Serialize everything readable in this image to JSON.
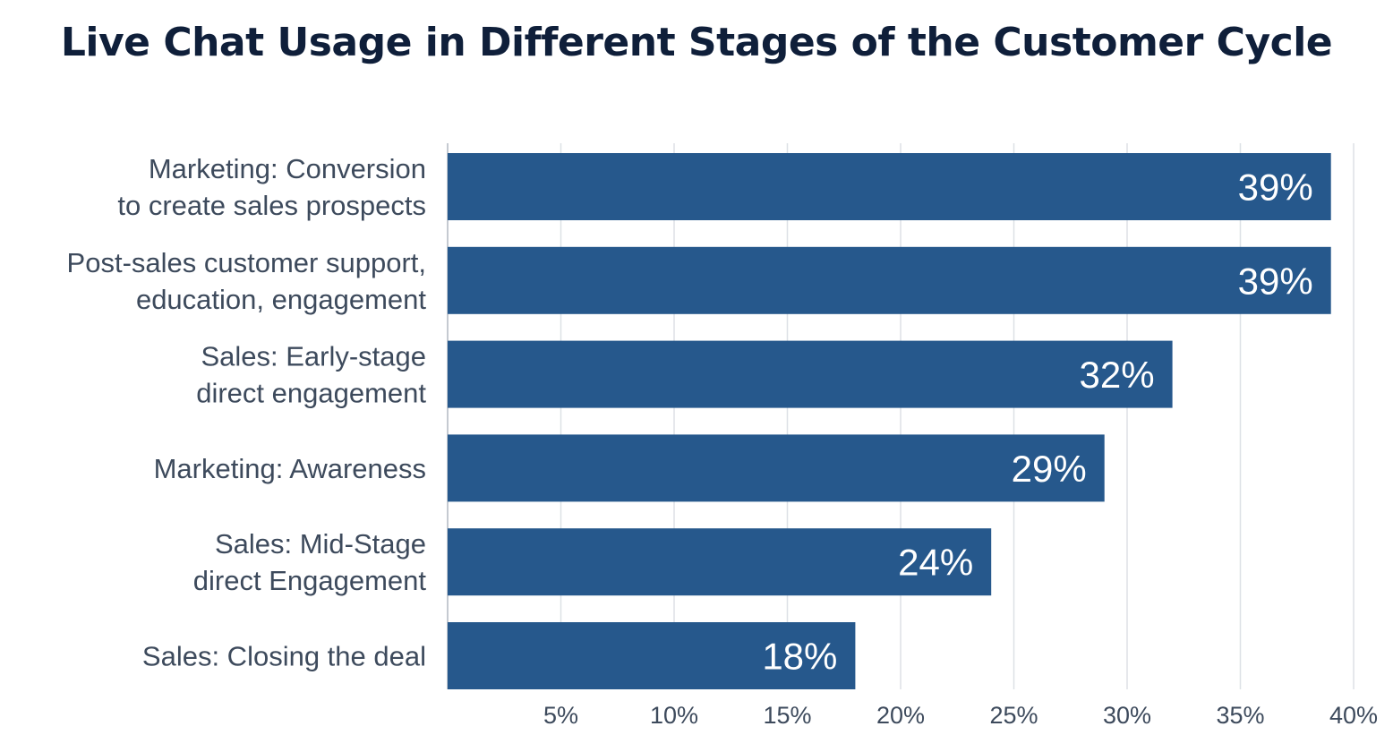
{
  "chart_data": {
    "type": "bar",
    "orientation": "horizontal",
    "title": "Live Chat Usage in Different Stages of the Customer Cycle",
    "categories": [
      [
        "Marketing: Conversion",
        "to create sales prospects"
      ],
      [
        "Post-sales customer support,",
        "education, engagement"
      ],
      [
        "Sales: Early-stage",
        "direct engagement"
      ],
      [
        "Marketing: Awareness"
      ],
      [
        "Sales: Mid-Stage",
        "direct Engagement"
      ],
      [
        "Sales: Closing the deal"
      ]
    ],
    "values": [
      39,
      39,
      32,
      29,
      24,
      18
    ],
    "value_labels": [
      "39%",
      "39%",
      "32%",
      "29%",
      "24%",
      "18%"
    ],
    "xlim": [
      0,
      40
    ],
    "x_ticks": [
      5,
      10,
      15,
      20,
      25,
      30,
      35,
      40
    ],
    "x_tick_labels": [
      "5%",
      "10%",
      "15%",
      "20%",
      "25%",
      "30%",
      "35%",
      "40%"
    ],
    "grid": true,
    "colors": {
      "bar": "#26588c",
      "grid": "#dde1e6",
      "axis": "#c5cad1",
      "title": "#0f1f3a",
      "label": "#3d4a5c",
      "value_text": "#ffffff"
    }
  }
}
